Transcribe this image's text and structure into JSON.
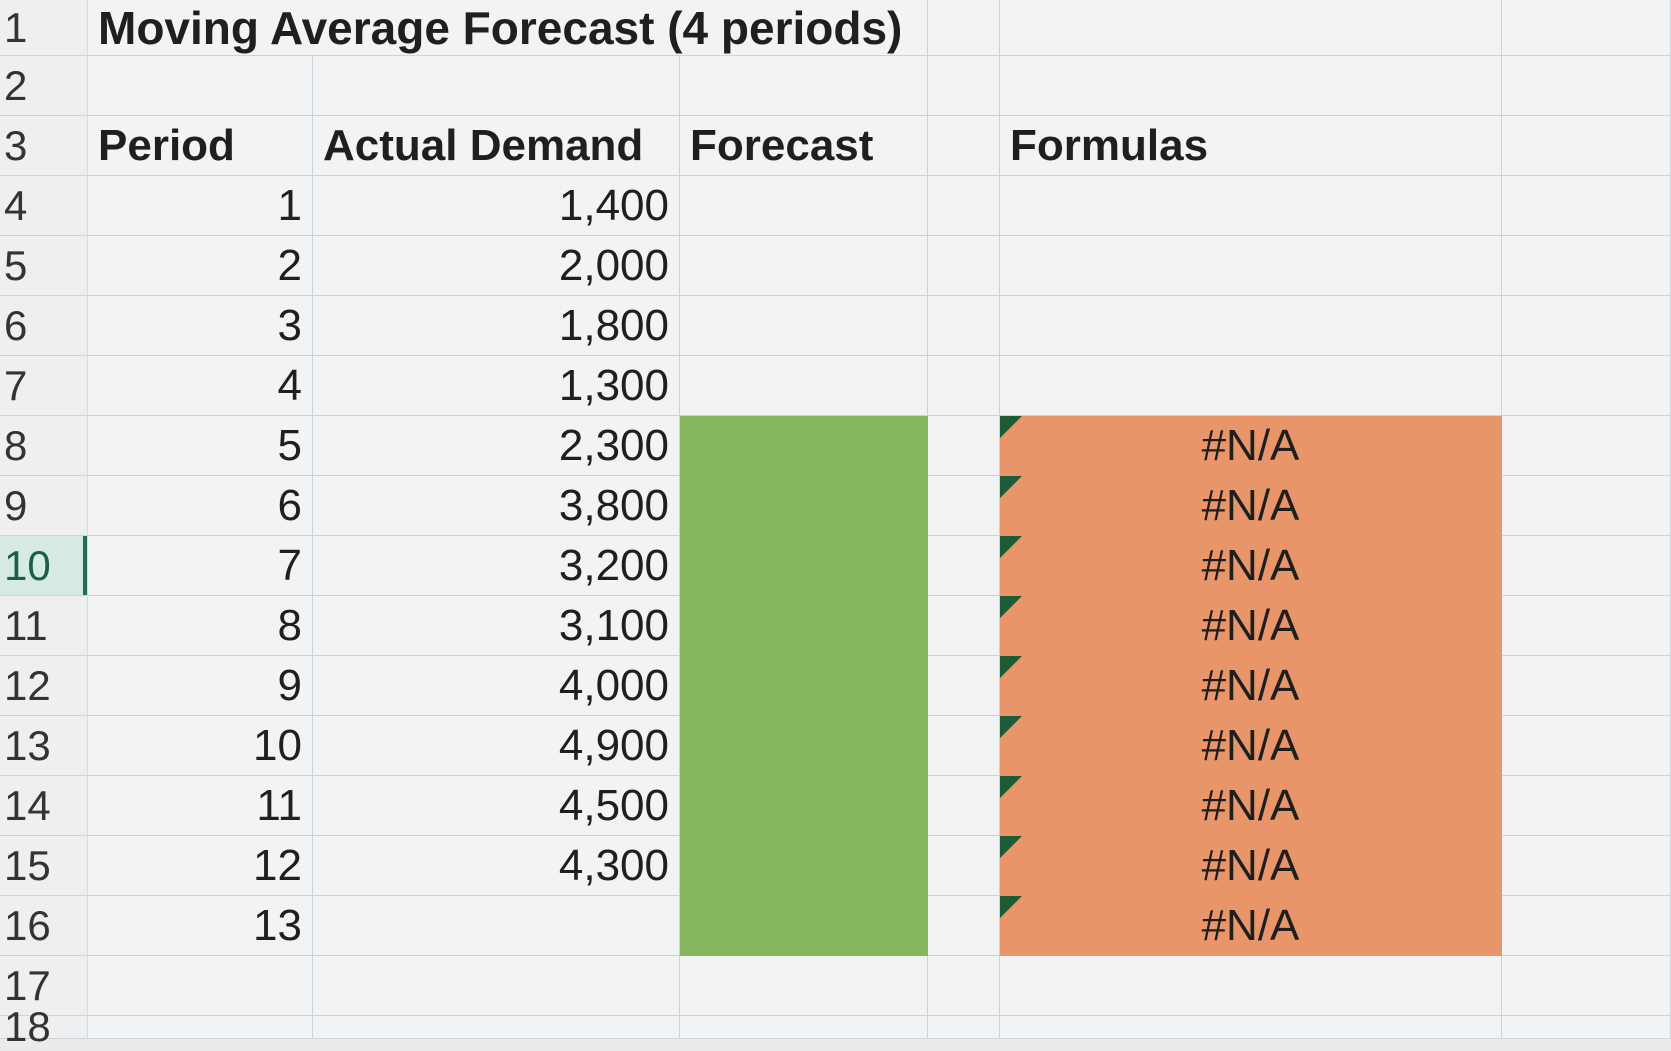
{
  "sheet": {
    "title": "Moving Average Forecast (4 periods)",
    "headers": {
      "period": "Period",
      "actual_demand": "Actual Demand",
      "forecast": "Forecast",
      "formulas": "Formulas"
    },
    "row_numbers": [
      "1",
      "2",
      "3",
      "4",
      "5",
      "6",
      "7",
      "8",
      "9",
      "10",
      "11",
      "12",
      "13",
      "14",
      "15",
      "16",
      "17",
      "18"
    ],
    "active_row": "10",
    "rows": [
      {
        "period": "1",
        "demand": "1,400",
        "formula": ""
      },
      {
        "period": "2",
        "demand": "2,000",
        "formula": ""
      },
      {
        "period": "3",
        "demand": "1,800",
        "formula": ""
      },
      {
        "period": "4",
        "demand": "1,300",
        "formula": ""
      },
      {
        "period": "5",
        "demand": "2,300",
        "formula": "#N/A"
      },
      {
        "period": "6",
        "demand": "3,800",
        "formula": "#N/A"
      },
      {
        "period": "7",
        "demand": "3,200",
        "formula": "#N/A"
      },
      {
        "period": "8",
        "demand": "3,100",
        "formula": "#N/A"
      },
      {
        "period": "9",
        "demand": "4,000",
        "formula": "#N/A"
      },
      {
        "period": "10",
        "demand": "4,900",
        "formula": "#N/A"
      },
      {
        "period": "11",
        "demand": "4,500",
        "formula": "#N/A"
      },
      {
        "period": "12",
        "demand": "4,300",
        "formula": "#N/A"
      },
      {
        "period": "13",
        "demand": "",
        "formula": "#N/A"
      }
    ],
    "colors": {
      "forecast_fill": "#86b75f",
      "formula_fill": "#e9956a",
      "error_flag": "#1d5b37"
    }
  }
}
